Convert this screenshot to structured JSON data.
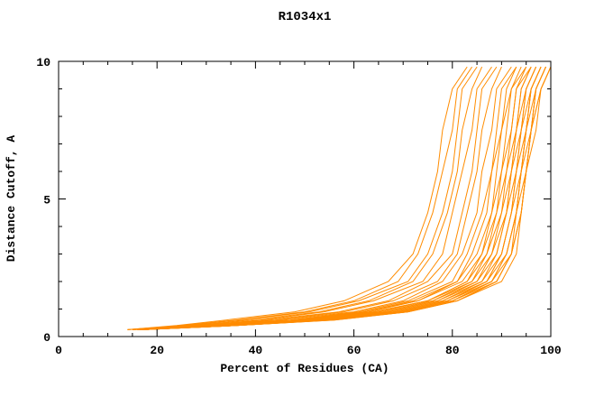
{
  "chart_data": {
    "type": "line",
    "title": "R1034x1",
    "xlabel": "Percent of Residues (CA)",
    "ylabel": "Distance Cutoff, A",
    "xlim": [
      0,
      100
    ],
    "ylim": [
      0,
      10
    ],
    "x_ticks": [
      0,
      20,
      40,
      60,
      80,
      100
    ],
    "y_ticks": [
      0,
      5,
      10
    ],
    "x_minor_step": 5,
    "y_minor_step": 1,
    "grid": false,
    "legend": "none",
    "line_color": "#ff8c00",
    "axis_color": "#000000",
    "y_levels": [
      0.25,
      0.4,
      0.6,
      0.9,
      1.3,
      2.0,
      3.0,
      4.5,
      6.0,
      7.5,
      9.0,
      9.8
    ],
    "series_x": [
      [
        14,
        24,
        34,
        48,
        58,
        67,
        72,
        75,
        77,
        78,
        80,
        83
      ],
      [
        14,
        25,
        36,
        50,
        60,
        69,
        73,
        76,
        78,
        80,
        81,
        84
      ],
      [
        14,
        26,
        37,
        51,
        61,
        71,
        75,
        78,
        80,
        81,
        82,
        85
      ],
      [
        15,
        27,
        39,
        53,
        63,
        72,
        76,
        79,
        81,
        82,
        84,
        86
      ],
      [
        15,
        28,
        41,
        54,
        64,
        74,
        78,
        80,
        82,
        84,
        85,
        88
      ],
      [
        15,
        29,
        42,
        57,
        67,
        75,
        80,
        82,
        84,
        85,
        86,
        89
      ],
      [
        15,
        29,
        44,
        58,
        68,
        77,
        81,
        83,
        85,
        86,
        88,
        90
      ],
      [
        16,
        30,
        45,
        60,
        70,
        78,
        82,
        85,
        86,
        88,
        89,
        92
      ],
      [
        16,
        31,
        47,
        61,
        71,
        80,
        83,
        86,
        88,
        89,
        90,
        93
      ],
      [
        16,
        31,
        48,
        62,
        72,
        81,
        84,
        87,
        88,
        90,
        91,
        93
      ],
      [
        16,
        32,
        48,
        62,
        73,
        81,
        85,
        88,
        89,
        90,
        92,
        94
      ],
      [
        16,
        32,
        49,
        63,
        73,
        82,
        86,
        88,
        90,
        91,
        92,
        95
      ],
      [
        16,
        32,
        49,
        64,
        75,
        83,
        86,
        89,
        90,
        92,
        93,
        95
      ],
      [
        16,
        33,
        50,
        64,
        75,
        83,
        87,
        89,
        91,
        92,
        93,
        96
      ],
      [
        16,
        33,
        50,
        65,
        75,
        84,
        87,
        90,
        91,
        93,
        94,
        96
      ],
      [
        17,
        33,
        51,
        66,
        76,
        84,
        88,
        90,
        92,
        93,
        94,
        96
      ],
      [
        17,
        34,
        51,
        66,
        76,
        85,
        88,
        91,
        92,
        93,
        95,
        97
      ],
      [
        17,
        34,
        52,
        67,
        77,
        85,
        89,
        91,
        92,
        94,
        95,
        97
      ],
      [
        17,
        34,
        52,
        67,
        77,
        86,
        89,
        91,
        93,
        94,
        95,
        97
      ],
      [
        17,
        35,
        53,
        68,
        78,
        86,
        90,
        92,
        93,
        94,
        96,
        98
      ],
      [
        17,
        35,
        53,
        68,
        78,
        87,
        90,
        92,
        93,
        95,
        96,
        98
      ],
      [
        17,
        35,
        54,
        69,
        79,
        87,
        90,
        92,
        94,
        95,
        96,
        98
      ],
      [
        17,
        35,
        54,
        69,
        79,
        87,
        91,
        93,
        94,
        95,
        96,
        98
      ],
      [
        17,
        36,
        54,
        69,
        79,
        88,
        91,
        93,
        94,
        95,
        97,
        99
      ],
      [
        17,
        36,
        55,
        70,
        80,
        88,
        91,
        93,
        94,
        96,
        97,
        99
      ],
      [
        17,
        36,
        55,
        70,
        80,
        88,
        92,
        93,
        95,
        96,
        97,
        99
      ],
      [
        17,
        36,
        55,
        70,
        80,
        89,
        92,
        94,
        95,
        96,
        97,
        99
      ],
      [
        17,
        36,
        55,
        71,
        81,
        89,
        92,
        94,
        95,
        96,
        98,
        100
      ],
      [
        17,
        36,
        56,
        71,
        81,
        89,
        92,
        94,
        95,
        96,
        98,
        100
      ],
      [
        17,
        36,
        56,
        71,
        81,
        90,
        93,
        94,
        95,
        97,
        98,
        100
      ]
    ]
  }
}
